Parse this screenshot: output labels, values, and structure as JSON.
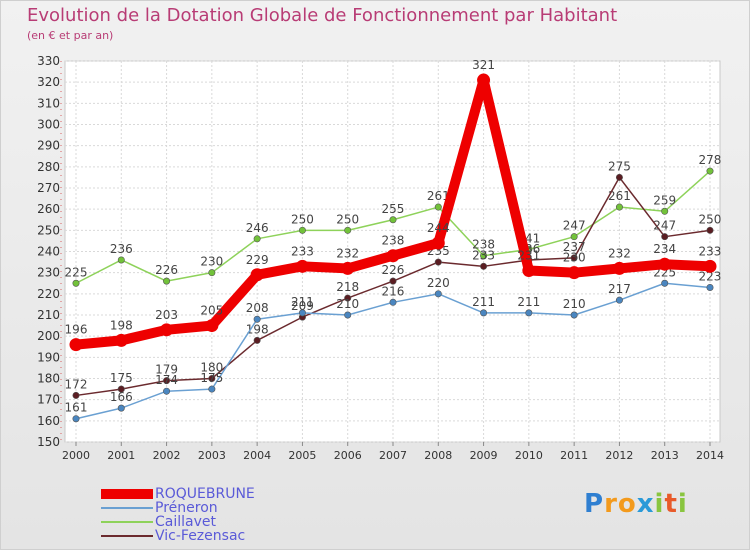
{
  "title": "Evolution de la Dotation Globale de Fonctionnement par Habitant",
  "subtitle": "(en € et par an)",
  "logo": {
    "text": "Proxiti",
    "letters": [
      "P",
      "r",
      "o",
      "x",
      "i",
      "t",
      "i"
    ]
  },
  "chart_data": {
    "type": "line",
    "title": "Evolution de la Dotation Globale de Fonctionnement par Habitant",
    "ylabel": "(en € et par an)",
    "ylim": [
      150,
      330
    ],
    "yticks": [
      150,
      160,
      170,
      180,
      190,
      200,
      210,
      220,
      230,
      240,
      250,
      260,
      270,
      280,
      290,
      300,
      310,
      320,
      330
    ],
    "x": [
      "2000",
      "2001",
      "2002",
      "2003",
      "2004",
      "2005",
      "2006",
      "2007",
      "2008",
      "2009",
      "2010",
      "2011",
      "2012",
      "2013",
      "2014"
    ],
    "grid": true,
    "legend_position": "bottom-left",
    "series": [
      {
        "name": "Caillavet",
        "color": "#8ed25a",
        "dot": "#72c23a",
        "values": [
          225,
          236,
          226,
          230,
          246,
          250,
          250,
          255,
          261,
          238,
          241,
          247,
          261,
          259,
          278
        ]
      },
      {
        "name": "Vic-Fezensac",
        "color": "#6b2a2e",
        "dot": "#5a1d22",
        "values": [
          172,
          175,
          179,
          180,
          198,
          209,
          218,
          226,
          235,
          233,
          236,
          237,
          275,
          247,
          250
        ]
      },
      {
        "name": "Préneron",
        "color": "#6aa0d2",
        "dot": "#4a86c0",
        "values": [
          161,
          166,
          174,
          175,
          208,
          211,
          210,
          216,
          220,
          211,
          211,
          210,
          217,
          225,
          223
        ]
      },
      {
        "name": "ROQUEBRUNE",
        "color": "#ee0000",
        "dot": "#ee0000",
        "values": [
          196,
          198,
          203,
          205,
          229,
          233,
          232,
          238,
          244,
          321,
          231,
          230,
          232,
          234,
          233
        ]
      }
    ],
    "legend_order": [
      "ROQUEBRUNE",
      "Préneron",
      "Caillavet",
      "Vic-Fezensac"
    ]
  }
}
